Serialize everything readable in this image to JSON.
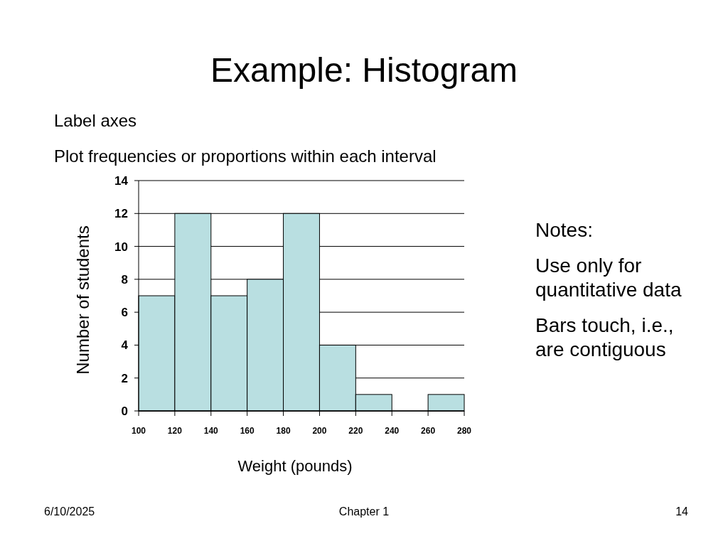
{
  "chart_data": {
    "type": "histogram",
    "title": "Example: Histogram",
    "xlabel": "Weight (pounds)",
    "ylabel": "Number of students",
    "bins": [
      100,
      120,
      140,
      160,
      180,
      200,
      220,
      240,
      260,
      280
    ],
    "values": [
      7,
      12,
      7,
      8,
      12,
      4,
      1,
      0,
      1
    ],
    "color": "#b9dfe1",
    "xlim": [
      100,
      280
    ],
    "xticks": [
      100,
      120,
      140,
      160,
      180,
      200,
      220,
      240,
      260,
      280
    ],
    "ylim": [
      0,
      14
    ],
    "yticks": [
      0,
      2,
      4,
      6,
      8,
      10,
      12,
      14
    ],
    "grid": "y",
    "annotations": [
      "Label axes",
      "Plot frequencies or proportions within each interval",
      "Notes:",
      "Use only for quantitative data",
      "Bars touch, i.e., are contiguous",
      "6/10/2025",
      "Chapter 1",
      "14"
    ]
  }
}
